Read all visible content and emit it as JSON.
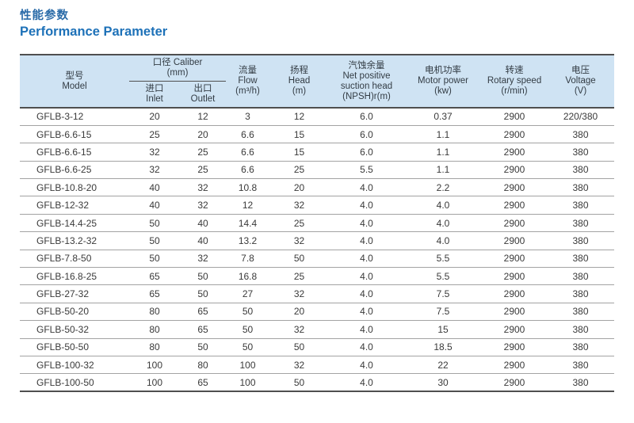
{
  "title": {
    "zh": "性能参数",
    "en": "Performance Parameter"
  },
  "table": {
    "header": {
      "model": {
        "zh": "型号",
        "en": "Model"
      },
      "caliber_group": {
        "label": "口径 Caliber",
        "unit": "(mm)"
      },
      "inlet": {
        "zh": "进口",
        "en": "Inlet"
      },
      "outlet": {
        "zh": "出口",
        "en": "Outlet"
      },
      "flow": {
        "zh": "流量",
        "en": "Flow",
        "unit": "(m³/h)"
      },
      "head": {
        "zh": "扬程",
        "en": "Head",
        "unit": "(m)"
      },
      "npsh": {
        "zh": "汽蚀余量",
        "en1": "Net positive",
        "en2": "suction head",
        "unit": "(NPSH)r(m)"
      },
      "motor_power": {
        "zh": "电机功率",
        "en": "Motor power",
        "unit": "(kw)"
      },
      "rotary_speed": {
        "zh": "转速",
        "en": "Rotary speed",
        "unit": "(r/min)"
      },
      "voltage": {
        "zh": "电压",
        "en": "Voltage",
        "unit": "(V)"
      }
    },
    "rows": [
      [
        "GFLB-3-12",
        "20",
        "12",
        "3",
        "12",
        "6.0",
        "0.37",
        "2900",
        "220/380"
      ],
      [
        "GFLB-6.6-15",
        "25",
        "20",
        "6.6",
        "15",
        "6.0",
        "1.1",
        "2900",
        "380"
      ],
      [
        "GFLB-6.6-15",
        "32",
        "25",
        "6.6",
        "15",
        "6.0",
        "1.1",
        "2900",
        "380"
      ],
      [
        "GFLB-6.6-25",
        "32",
        "25",
        "6.6",
        "25",
        "5.5",
        "1.1",
        "2900",
        "380"
      ],
      [
        "GFLB-10.8-20",
        "40",
        "32",
        "10.8",
        "20",
        "4.0",
        "2.2",
        "2900",
        "380"
      ],
      [
        "GFLB-12-32",
        "40",
        "32",
        "12",
        "32",
        "4.0",
        "4.0",
        "2900",
        "380"
      ],
      [
        "GFLB-14.4-25",
        "50",
        "40",
        "14.4",
        "25",
        "4.0",
        "4.0",
        "2900",
        "380"
      ],
      [
        "GFLB-13.2-32",
        "50",
        "40",
        "13.2",
        "32",
        "4.0",
        "4.0",
        "2900",
        "380"
      ],
      [
        "GFLB-7.8-50",
        "50",
        "32",
        "7.8",
        "50",
        "4.0",
        "5.5",
        "2900",
        "380"
      ],
      [
        "GFLB-16.8-25",
        "65",
        "50",
        "16.8",
        "25",
        "4.0",
        "5.5",
        "2900",
        "380"
      ],
      [
        "GFLB-27-32",
        "65",
        "50",
        "27",
        "32",
        "4.0",
        "7.5",
        "2900",
        "380"
      ],
      [
        "GFLB-50-20",
        "80",
        "65",
        "50",
        "20",
        "4.0",
        "7.5",
        "2900",
        "380"
      ],
      [
        "GFLB-50-32",
        "80",
        "65",
        "50",
        "32",
        "4.0",
        "15",
        "2900",
        "380"
      ],
      [
        "GFLB-50-50",
        "80",
        "50",
        "50",
        "50",
        "4.0",
        "18.5",
        "2900",
        "380"
      ],
      [
        "GFLB-100-32",
        "100",
        "80",
        "100",
        "32",
        "4.0",
        "22",
        "2900",
        "380"
      ],
      [
        "GFLB-100-50",
        "100",
        "65",
        "100",
        "50",
        "4.0",
        "30",
        "2900",
        "380"
      ]
    ]
  },
  "colors": {
    "title_blue": "#1d71b8",
    "header_bg": "#cfe3f3",
    "border_dark": "#4f4f4f",
    "border_light": "#a3a3a3",
    "text": "#3a3a3a"
  }
}
